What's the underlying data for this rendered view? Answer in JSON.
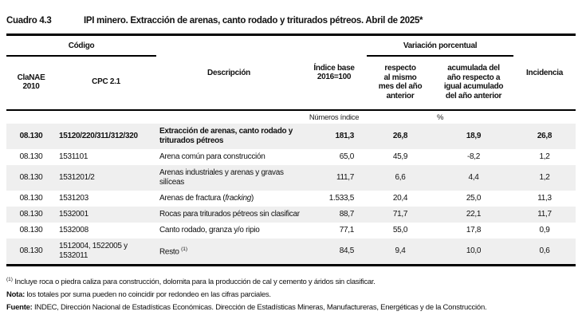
{
  "header": {
    "label": "Cuadro 4.3",
    "title": "IPI minero. Extracción de arenas, canto rodado y triturados pétreos. Abril de 2025*"
  },
  "table": {
    "groups": {
      "codigo": "Código",
      "variacion": "Variación porcentual"
    },
    "columns": {
      "clanae": "ClaNAE\n2010",
      "cpc": "CPC 2.1",
      "descripcion": "Descripción",
      "indice": "Índice base\n2016=100",
      "respecto": "respecto\nal mismo\nmes del año\nanterior",
      "acumulada": "acumulada del\naño respecto a\nigual acumulado\ndel año anterior",
      "incidencia": "Incidencia"
    },
    "units": {
      "indice": "Números índice",
      "variacion": "%"
    },
    "rows": [
      {
        "clanae": "08.130",
        "cpc": "15120/220/311/312/320",
        "desc": "Extracción de arenas, canto rodado y triturados pétreos",
        "indice": "181,3",
        "respecto": "26,8",
        "acumulada": "18,9",
        "incidencia": "26,8",
        "emphasis": true
      },
      {
        "clanae": "08.130",
        "cpc": "1531101",
        "desc": "Arena común para construcción",
        "indice": "65,0",
        "respecto": "45,9",
        "acumulada": "-8,2",
        "incidencia": "1,2"
      },
      {
        "clanae": "08.130",
        "cpc": "1531201/2",
        "desc": "Arenas industriales y arenas y gravas silíceas",
        "indice": "111,7",
        "respecto": "6,6",
        "acumulada": "4,4",
        "incidencia": "1,2"
      },
      {
        "clanae": "08.130",
        "cpc": "1531203",
        "desc": "Arenas de fractura (",
        "desc_italic": "fracking",
        "desc_after": ")",
        "indice": "1.533,5",
        "respecto": "20,4",
        "acumulada": "25,0",
        "incidencia": "11,3"
      },
      {
        "clanae": "08.130",
        "cpc": "1532001",
        "desc": "Rocas para triturados pétreos sin clasificar",
        "indice": "88,7",
        "respecto": "71,7",
        "acumulada": "22,1",
        "incidencia": "11,7"
      },
      {
        "clanae": "08.130",
        "cpc": "1532008",
        "desc": "Canto rodado, granza y/o ripio",
        "indice": "77,1",
        "respecto": "55,0",
        "acumulada": "17,8",
        "incidencia": "0,9"
      },
      {
        "clanae": "08.130",
        "cpc": "1512004, 1522005 y 1532011",
        "desc": "Resto ",
        "desc_sup": "(1)",
        "indice": "84,5",
        "respecto": "9,4",
        "acumulada": "10,0",
        "incidencia": "0,6"
      }
    ]
  },
  "footnotes": {
    "note1_sup": "(1)",
    "note1_text": " Incluye roca o piedra caliza para construcción, dolomita para la producción de cal y cemento y áridos sin clasificar.",
    "note2_label": "Nota:",
    "note2_text": " los totales por suma pueden no coincidir por redondeo en las cifras parciales.",
    "note3_label": "Fuente:",
    "note3_text": " INDEC, Dirección Nacional de Estadísticas Económicas. Dirección de Estadísticas Mineras, Manufactureras, Energéticas y de la Construcción."
  }
}
